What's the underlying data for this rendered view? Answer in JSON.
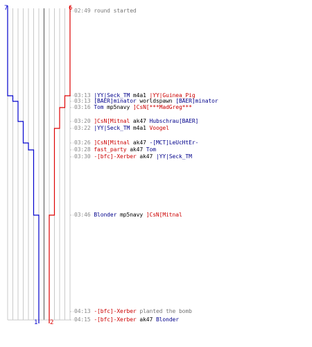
{
  "teams": {
    "blue": {
      "start": "7",
      "end": "1",
      "color": "#0000cc"
    },
    "red": {
      "start": "6",
      "end": "2",
      "color": "#dd0000"
    }
  },
  "events": [
    {
      "time": "02:49",
      "parts": [
        {
          "text": "round started",
          "role": "gray"
        }
      ]
    },
    {
      "time": "03:13",
      "parts": [
        {
          "text": "|YY|Seck_TM",
          "role": "blue"
        },
        {
          "text": " m4a1 ",
          "role": "dark"
        },
        {
          "text": "|YY|Guinea_Pig",
          "role": "red"
        }
      ]
    },
    {
      "time": "03:13",
      "parts": [
        {
          "text": "[BAER]minator",
          "role": "blue"
        },
        {
          "text": " worldspawn ",
          "role": "dark"
        },
        {
          "text": "[BAER]minator",
          "role": "blue"
        }
      ]
    },
    {
      "time": "03:16",
      "parts": [
        {
          "text": "Tom",
          "role": "blue"
        },
        {
          "text": " mp5navy ",
          "role": "dark"
        },
        {
          "text": "]CsN[***MadGreg***",
          "role": "red"
        }
      ]
    },
    {
      "time": "03:20",
      "parts": [
        {
          "text": "]CsN[Mitnal",
          "role": "red"
        },
        {
          "text": " ak47 ",
          "role": "dark"
        },
        {
          "text": "Hubschrau[BAER]",
          "role": "blue"
        }
      ]
    },
    {
      "time": "03:22",
      "parts": [
        {
          "text": "|YY|Seck_TM",
          "role": "blue"
        },
        {
          "text": " m4a1 ",
          "role": "dark"
        },
        {
          "text": "Voogel",
          "role": "red"
        }
      ]
    },
    {
      "time": "03:26",
      "parts": [
        {
          "text": "]CsN[Mitnal",
          "role": "red"
        },
        {
          "text": " ak47 ",
          "role": "dark"
        },
        {
          "text": "-[MCT]LeUcHtEr-",
          "role": "blue"
        }
      ]
    },
    {
      "time": "03:28",
      "parts": [
        {
          "text": "fast_party",
          "role": "red"
        },
        {
          "text": " ak47 ",
          "role": "dark"
        },
        {
          "text": "Tom",
          "role": "blue"
        }
      ]
    },
    {
      "time": "03:30",
      "parts": [
        {
          "text": "-[bfc]-Xerber",
          "role": "red"
        },
        {
          "text": " ak47 ",
          "role": "dark"
        },
        {
          "text": "|YY|Seck_TM",
          "role": "blue"
        }
      ]
    },
    {
      "time": "03:46",
      "parts": [
        {
          "text": "Blonder",
          "role": "blue"
        },
        {
          "text": " mp5navy ",
          "role": "dark"
        },
        {
          "text": "]CsN[Mitnal",
          "role": "red"
        }
      ]
    },
    {
      "time": "04:13",
      "parts": [
        {
          "text": "-[bfc]-Xerber",
          "role": "red"
        },
        {
          "text": " planted the bomb",
          "role": "gray"
        }
      ]
    },
    {
      "time": "04:15",
      "parts": [
        {
          "text": "-[bfc]-Xerber",
          "role": "red"
        },
        {
          "text": " ak47 ",
          "role": "dark"
        },
        {
          "text": "Blonder",
          "role": "blue"
        }
      ]
    }
  ]
}
